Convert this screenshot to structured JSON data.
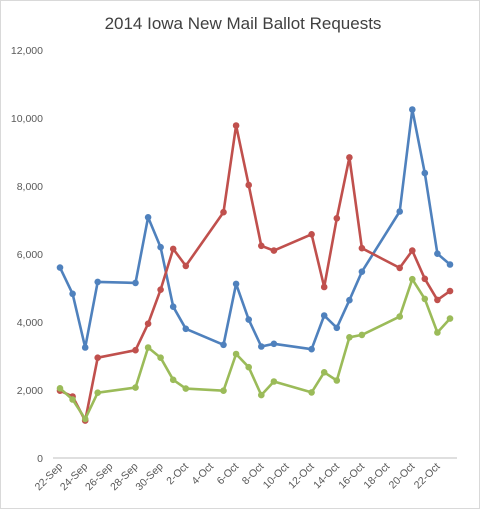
{
  "chart_data": {
    "type": "line",
    "title": "2014 Iowa New Mail Ballot Requests",
    "xlabel": "",
    "ylabel": "",
    "ylim": [
      0,
      12000
    ],
    "y_ticks": [
      0,
      2000,
      4000,
      6000,
      8000,
      10000,
      12000
    ],
    "y_tick_labels": [
      "0",
      "2,000",
      "4,000",
      "6,000",
      "8,000",
      "10,000",
      "12,000"
    ],
    "x_range": [
      "2014-09-22",
      "2014-10-23"
    ],
    "x_tick_labels": [
      "22-Sep",
      "24-Sep",
      "26-Sep",
      "28-Sep",
      "30-Sep",
      "2-Oct",
      "4-Oct",
      "6-Oct",
      "8-Oct",
      "10-Oct",
      "12-Oct",
      "14-Oct",
      "16-Oct",
      "18-Oct",
      "20-Oct",
      "22-Oct"
    ],
    "x_tick_dates": [
      "2014-09-22",
      "2014-09-24",
      "2014-09-26",
      "2014-09-28",
      "2014-09-30",
      "2014-10-02",
      "2014-10-04",
      "2014-10-06",
      "2014-10-08",
      "2014-10-10",
      "2014-10-12",
      "2014-10-14",
      "2014-10-16",
      "2014-10-18",
      "2014-10-20",
      "2014-10-22"
    ],
    "grid": false,
    "legend": "none",
    "series": [
      {
        "color": "#4f81bd",
        "points": [
          {
            "x": "2014-09-22",
            "y": 5600
          },
          {
            "x": "2014-09-23",
            "y": 4830
          },
          {
            "x": "2014-09-24",
            "y": 3250
          },
          {
            "x": "2014-09-25",
            "y": 5180
          },
          {
            "x": "2014-09-28",
            "y": 5150
          },
          {
            "x": "2014-09-29",
            "y": 7080
          },
          {
            "x": "2014-09-30",
            "y": 6200
          },
          {
            "x": "2014-10-01",
            "y": 4450
          },
          {
            "x": "2014-10-02",
            "y": 3800
          },
          {
            "x": "2014-10-05",
            "y": 3330
          },
          {
            "x": "2014-10-06",
            "y": 5120
          },
          {
            "x": "2014-10-07",
            "y": 4070
          },
          {
            "x": "2014-10-08",
            "y": 3280
          },
          {
            "x": "2014-10-09",
            "y": 3360
          },
          {
            "x": "2014-10-12",
            "y": 3200
          },
          {
            "x": "2014-10-13",
            "y": 4190
          },
          {
            "x": "2014-10-14",
            "y": 3830
          },
          {
            "x": "2014-10-15",
            "y": 4640
          },
          {
            "x": "2014-10-16",
            "y": 5480
          },
          {
            "x": "2014-10-19",
            "y": 7250
          },
          {
            "x": "2014-10-20",
            "y": 10250
          },
          {
            "x": "2014-10-21",
            "y": 8380
          },
          {
            "x": "2014-10-22",
            "y": 6010
          },
          {
            "x": "2014-10-23",
            "y": 5690
          }
        ]
      },
      {
        "color": "#c0504d",
        "points": [
          {
            "x": "2014-09-22",
            "y": 1980
          },
          {
            "x": "2014-09-23",
            "y": 1810
          },
          {
            "x": "2014-09-24",
            "y": 1100
          },
          {
            "x": "2014-09-25",
            "y": 2950
          },
          {
            "x": "2014-09-28",
            "y": 3170
          },
          {
            "x": "2014-09-29",
            "y": 3950
          },
          {
            "x": "2014-09-30",
            "y": 4950
          },
          {
            "x": "2014-10-01",
            "y": 6150
          },
          {
            "x": "2014-10-02",
            "y": 5650
          },
          {
            "x": "2014-10-05",
            "y": 7230
          },
          {
            "x": "2014-10-06",
            "y": 9780
          },
          {
            "x": "2014-10-07",
            "y": 8030
          },
          {
            "x": "2014-10-08",
            "y": 6240
          },
          {
            "x": "2014-10-09",
            "y": 6100
          },
          {
            "x": "2014-10-12",
            "y": 6580
          },
          {
            "x": "2014-10-13",
            "y": 5030
          },
          {
            "x": "2014-10-14",
            "y": 7050
          },
          {
            "x": "2014-10-15",
            "y": 8840
          },
          {
            "x": "2014-10-16",
            "y": 6170
          },
          {
            "x": "2014-10-19",
            "y": 5590
          },
          {
            "x": "2014-10-20",
            "y": 6100
          },
          {
            "x": "2014-10-21",
            "y": 5270
          },
          {
            "x": "2014-10-22",
            "y": 4650
          },
          {
            "x": "2014-10-23",
            "y": 4910
          }
        ]
      },
      {
        "color": "#9bbb59",
        "points": [
          {
            "x": "2014-09-22",
            "y": 2050
          },
          {
            "x": "2014-09-23",
            "y": 1720
          },
          {
            "x": "2014-09-24",
            "y": 1150
          },
          {
            "x": "2014-09-25",
            "y": 1920
          },
          {
            "x": "2014-09-28",
            "y": 2070
          },
          {
            "x": "2014-09-29",
            "y": 3250
          },
          {
            "x": "2014-09-30",
            "y": 2950
          },
          {
            "x": "2014-10-01",
            "y": 2300
          },
          {
            "x": "2014-10-02",
            "y": 2040
          },
          {
            "x": "2014-10-05",
            "y": 1980
          },
          {
            "x": "2014-10-06",
            "y": 3060
          },
          {
            "x": "2014-10-07",
            "y": 2670
          },
          {
            "x": "2014-10-08",
            "y": 1850
          },
          {
            "x": "2014-10-09",
            "y": 2250
          },
          {
            "x": "2014-10-12",
            "y": 1930
          },
          {
            "x": "2014-10-13",
            "y": 2520
          },
          {
            "x": "2014-10-14",
            "y": 2280
          },
          {
            "x": "2014-10-15",
            "y": 3550
          },
          {
            "x": "2014-10-16",
            "y": 3620
          },
          {
            "x": "2014-10-19",
            "y": 4160
          },
          {
            "x": "2014-10-20",
            "y": 5260
          },
          {
            "x": "2014-10-21",
            "y": 4680
          },
          {
            "x": "2014-10-22",
            "y": 3690
          },
          {
            "x": "2014-10-23",
            "y": 4100
          }
        ]
      }
    ]
  }
}
